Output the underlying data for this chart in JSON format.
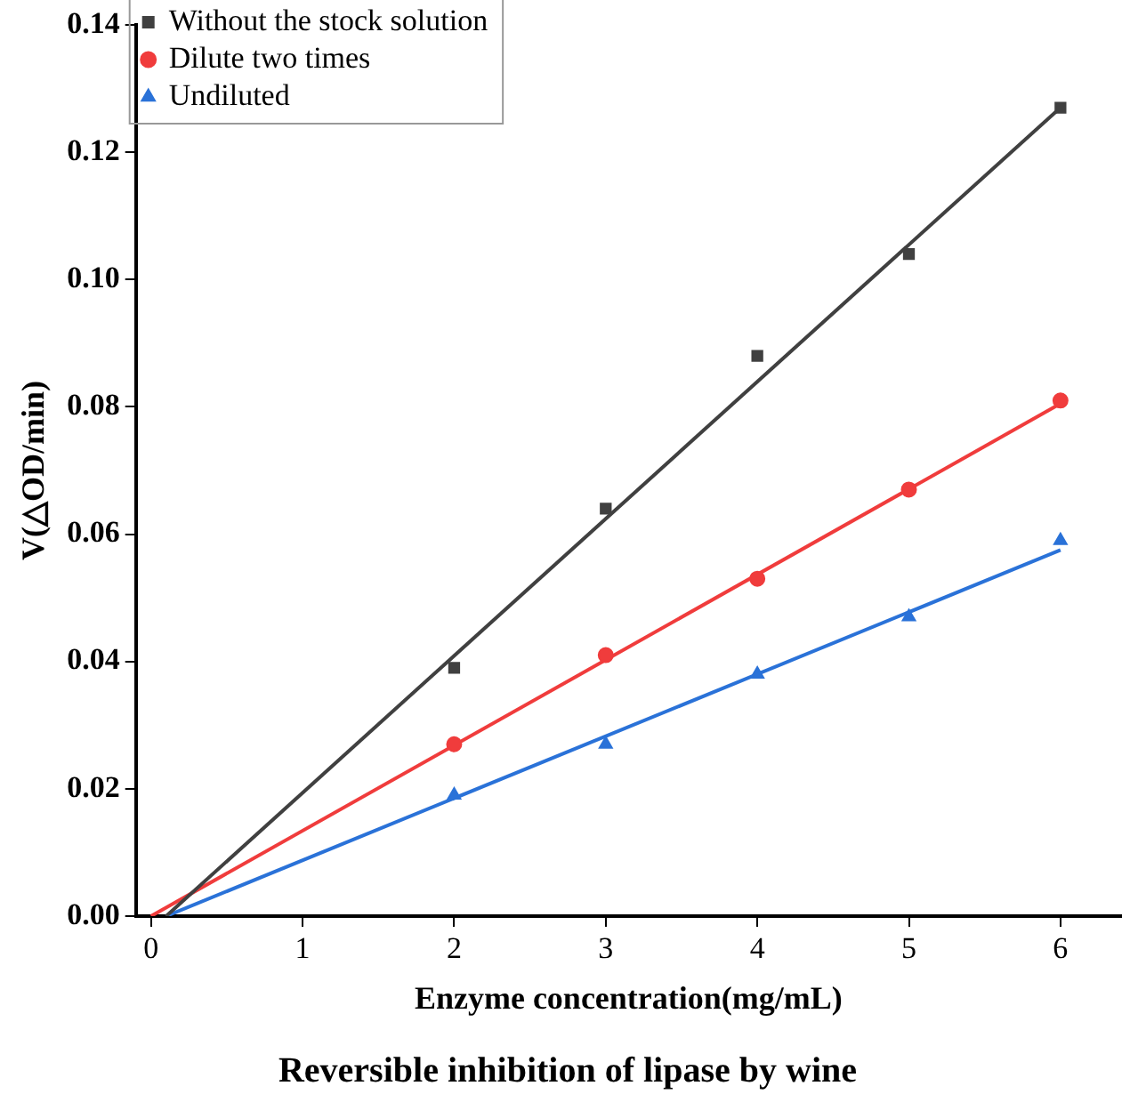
{
  "chart_data": {
    "type": "scatter",
    "title": "Reversible inhibition of lipase by wine",
    "xlabel": "Enzyme concentration(mg/mL)",
    "ylabel": "V(△OD/min)",
    "x": [
      2,
      3,
      4,
      5,
      6
    ],
    "series": [
      {
        "name": "Without the stock solution",
        "color": "#404040",
        "marker": "square",
        "values": [
          0.039,
          0.064,
          0.088,
          0.104,
          0.127
        ]
      },
      {
        "name": "Dilute two times",
        "color": "#f03c3c",
        "marker": "circle",
        "values": [
          0.027,
          0.041,
          0.053,
          0.067,
          0.081
        ]
      },
      {
        "name": "Undiluted",
        "color": "#2a72d8",
        "marker": "triangle",
        "values": [
          0.019,
          0.027,
          0.038,
          0.047,
          0.059
        ]
      },
      {
        "type": "line",
        "color": "#404040",
        "x": [
          0.1,
          6
        ],
        "values": [
          0,
          0.127
        ]
      },
      {
        "type": "line",
        "color": "#f03c3c",
        "x": [
          0,
          6
        ],
        "values": [
          0,
          0.0805
        ]
      },
      {
        "type": "line",
        "color": "#2a72d8",
        "x": [
          0.1,
          6
        ],
        "values": [
          0,
          0.0575
        ]
      }
    ],
    "xlim": [
      -0.1,
      6.4
    ],
    "xticks": [
      0,
      1,
      2,
      3,
      4,
      5,
      6
    ],
    "ylim": [
      0,
      0.14
    ],
    "yticks": [
      {
        "value": 0,
        "label": "0.00"
      },
      {
        "value": 0.02,
        "label": "0.02"
      },
      {
        "value": 0.04,
        "label": "0.04"
      },
      {
        "value": 0.06,
        "label": "0.06"
      },
      {
        "value": 0.08,
        "label": "0.08"
      },
      {
        "value": 0.1,
        "label": "0.10"
      },
      {
        "value": 0.12,
        "label": "0.12"
      },
      {
        "value": 0.14,
        "label": "0.14"
      }
    ],
    "grid": false,
    "legend": "top left"
  }
}
